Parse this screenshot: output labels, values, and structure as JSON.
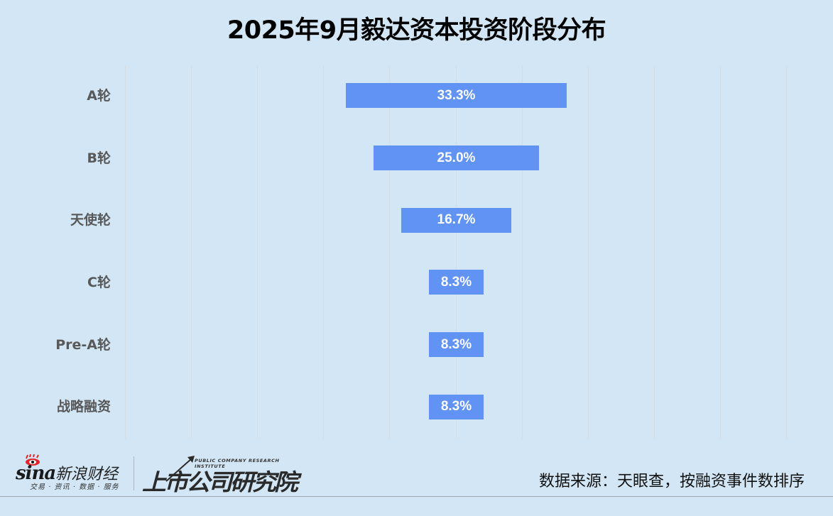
{
  "title": "2025年9月毅达资本投资阶段分布",
  "chart_data": {
    "type": "bar",
    "orientation": "horizontal-centered",
    "title": "2025年9月毅达资本投资阶段分布",
    "categories": [
      "A轮",
      "B轮",
      "天使轮",
      "C轮",
      "Pre-A轮",
      "战略融资"
    ],
    "values": [
      33.3,
      25.0,
      16.7,
      8.3,
      8.3,
      8.3
    ],
    "labels": [
      "33.3%",
      "25.0%",
      "16.7%",
      "8.3%",
      "8.3%",
      "8.3%"
    ],
    "unit": "%",
    "xlabel": "",
    "ylabel": "",
    "grid": "vertical",
    "legend": "none",
    "bar_color": "#6193f5"
  },
  "footer": {
    "source": "数据来源：天眼查，按融资事件数排序",
    "sina_brand": "sina",
    "sina_cn": "新浪财经",
    "sina_tagline": "交易 · 资讯 · 数据 · 服务",
    "institute_en": "PUBLIC COMPANY RESEARCH INSTITUTE",
    "institute_cn": "上市公司研究院"
  },
  "colors": {
    "background": "#d2e6f5",
    "bar": "#6193f5",
    "label": "#595959",
    "grid": "#dadbdc"
  }
}
